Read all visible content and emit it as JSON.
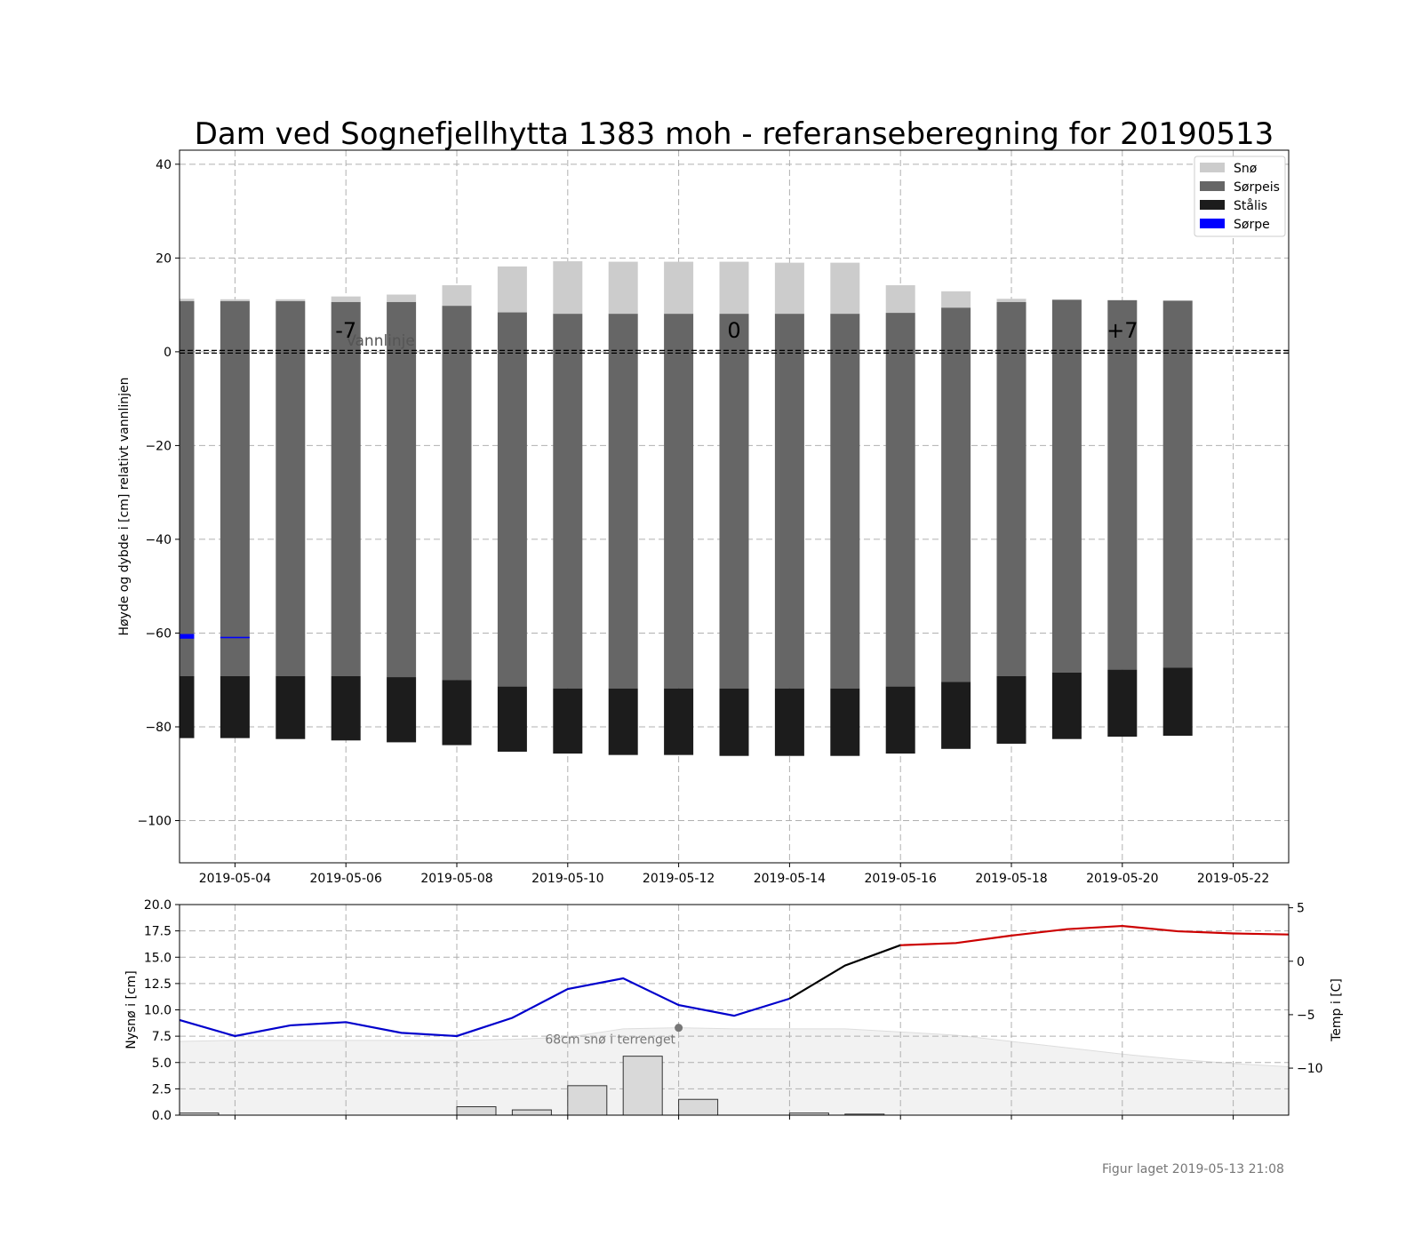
{
  "chart_data": [
    {
      "type": "bar",
      "title": "Dam ved Sognefjellhytta 1383 moh - referanseberegning for 20190513",
      "ylabel": "Høyde og dybde i [cm] relativt vannlinjen",
      "xlabel": "",
      "xlim": [
        "2019-05-03",
        "2019-05-23"
      ],
      "ylim": [
        -109,
        43
      ],
      "yticks": [
        40,
        20,
        0,
        -20,
        -40,
        -60,
        -80,
        -100
      ],
      "ytick_labels": [
        "40",
        "20",
        "0",
        "−20",
        "−40",
        "−60",
        "−80",
        "−100"
      ],
      "xticks": [
        "2019-05-04",
        "2019-05-06",
        "2019-05-08",
        "2019-05-10",
        "2019-05-12",
        "2019-05-14",
        "2019-05-16",
        "2019-05-18",
        "2019-05-20",
        "2019-05-22"
      ],
      "grid": true,
      "legend_position": "top-right",
      "legend": [
        {
          "label": "Snø",
          "color": "#cccccc"
        },
        {
          "label": "Sørpeis",
          "color": "#666666"
        },
        {
          "label": "Stålis",
          "color": "#1c1c1c"
        },
        {
          "label": "Sørpe",
          "color": "#0000ff"
        }
      ],
      "waterline_label": "Vannlinje",
      "day_markers": [
        {
          "date": "2019-05-06",
          "label": "-7"
        },
        {
          "date": "2019-05-13",
          "label": "0"
        },
        {
          "date": "2019-05-20",
          "label": "+7"
        }
      ],
      "dates": [
        "2019-05-03",
        "2019-05-04",
        "2019-05-05",
        "2019-05-06",
        "2019-05-07",
        "2019-05-08",
        "2019-05-09",
        "2019-05-10",
        "2019-05-11",
        "2019-05-12",
        "2019-05-13",
        "2019-05-14",
        "2019-05-15",
        "2019-05-16",
        "2019-05-17",
        "2019-05-18",
        "2019-05-19",
        "2019-05-20",
        "2019-05-21"
      ],
      "series": [
        {
          "name": "Snø",
          "top": [
            11.3,
            11.2,
            11.2,
            11.8,
            12.2,
            14.2,
            18.2,
            19.3,
            19.2,
            19.2,
            19.2,
            19.0,
            19.0,
            14.2,
            12.9,
            11.3,
            11.1,
            11.0,
            10.9
          ]
        },
        {
          "name": "Sørpeis",
          "top": [
            10.8,
            10.8,
            10.8,
            10.6,
            10.6,
            9.8,
            8.4,
            8.1,
            8.1,
            8.1,
            8.1,
            8.1,
            8.1,
            8.3,
            9.4,
            10.6,
            11.1,
            11.0,
            10.9
          ]
        },
        {
          "name": "Stålis",
          "top": [
            -69.2,
            -69.2,
            -69.2,
            -69.2,
            -69.4,
            -70.0,
            -71.4,
            -71.8,
            -71.8,
            -71.8,
            -71.8,
            -71.8,
            -71.8,
            -71.4,
            -70.4,
            -69.2,
            -68.4,
            -67.8,
            -67.4
          ]
        },
        {
          "name": "Stålis bunn",
          "bottom": [
            -82.4,
            -82.4,
            -82.6,
            -82.9,
            -83.3,
            -83.9,
            -85.3,
            -85.7,
            -86.0,
            -86.0,
            -86.2,
            -86.2,
            -86.2,
            -85.7,
            -84.7,
            -83.6,
            -82.6,
            -82.1,
            -81.9
          ]
        },
        {
          "name": "Sørpe",
          "values": [
            {
              "date": "2019-05-03",
              "top": -60.2,
              "bottom": -61.2
            },
            {
              "date": "2019-05-04",
              "top": -60.8,
              "bottom": -61.1
            }
          ]
        }
      ]
    },
    {
      "type": "bar",
      "ylabel": "Nysnø i [cm]",
      "ylabel_right": "Temp i [C]",
      "ylim": [
        0,
        20
      ],
      "yticks": [
        0,
        2.5,
        5,
        7.5,
        10,
        12.5,
        15,
        17.5,
        20
      ],
      "ytick_labels": [
        "0.0",
        "2.5",
        "5.0",
        "7.5",
        "10.0",
        "12.5",
        "15.0",
        "17.5",
        "20.0"
      ],
      "ylim_right": [
        -14.4,
        5.3
      ],
      "yticks_right": [
        5,
        0,
        -5,
        -10
      ],
      "ytick_labels_right": [
        "5",
        "0",
        "−5",
        "−10"
      ],
      "grid": true,
      "snow_annotation": "68cm snø i terrenget",
      "new_snow": {
        "dates": [
          "2019-05-03",
          "2019-05-04",
          "2019-05-05",
          "2019-05-06",
          "2019-05-07",
          "2019-05-08",
          "2019-05-09",
          "2019-05-10",
          "2019-05-11",
          "2019-05-12",
          "2019-05-13",
          "2019-05-14",
          "2019-05-15",
          "2019-05-16",
          "2019-05-17",
          "2019-05-18",
          "2019-05-19",
          "2019-05-20",
          "2019-05-21",
          "2019-05-22"
        ],
        "values": [
          0.2,
          0,
          0,
          0,
          0,
          0.8,
          0.5,
          2.8,
          5.6,
          1.5,
          0,
          0.2,
          0.1,
          0,
          0,
          0,
          0,
          0,
          0,
          0
        ]
      },
      "terrain_snow": {
        "x": [
          "2019-05-03",
          "2019-05-04",
          "2019-05-05",
          "2019-05-06",
          "2019-05-07",
          "2019-05-08",
          "2019-05-09",
          "2019-05-10",
          "2019-05-11",
          "2019-05-12",
          "2019-05-13",
          "2019-05-14",
          "2019-05-15",
          "2019-05-16",
          "2019-05-17",
          "2019-05-18",
          "2019-05-19",
          "2019-05-20",
          "2019-05-21",
          "2019-05-22",
          "2019-05-23"
        ],
        "values": [
          7.0,
          7.1,
          7.1,
          7.1,
          7.1,
          7.1,
          7.2,
          7.4,
          8.2,
          8.3,
          8.2,
          8.2,
          8.2,
          7.9,
          7.6,
          7.0,
          6.4,
          5.8,
          5.3,
          4.9,
          4.6
        ]
      },
      "temperature_observed": {
        "color": "#0000cc",
        "x": [
          "2019-05-03",
          "2019-05-04",
          "2019-05-05",
          "2019-05-06",
          "2019-05-07",
          "2019-05-08",
          "2019-05-09",
          "2019-05-10",
          "2019-05-11",
          "2019-05-12",
          "2019-05-13",
          "2019-05-14"
        ],
        "values": [
          -5.5,
          -7.0,
          -6.0,
          -5.7,
          -6.7,
          -7.0,
          -5.3,
          -2.6,
          -1.6,
          -4.1,
          -5.1,
          -3.5
        ]
      },
      "temperature_transition": {
        "color": "#000000",
        "x": [
          "2019-05-14",
          "2019-05-15",
          "2019-05-16"
        ],
        "values": [
          -3.5,
          -0.4,
          1.5
        ]
      },
      "temperature_forecast": {
        "color": "#cc0000",
        "x": [
          "2019-05-16",
          "2019-05-17",
          "2019-05-18",
          "2019-05-19",
          "2019-05-20",
          "2019-05-21",
          "2019-05-22",
          "2019-05-23"
        ],
        "values": [
          1.5,
          1.7,
          2.4,
          3.0,
          3.3,
          2.8,
          2.6,
          2.5
        ]
      },
      "marker": {
        "date": "2019-05-12",
        "value": 8.3,
        "color": "#777777"
      }
    }
  ],
  "footer": "Figur laget 2019-05-13 21:08"
}
